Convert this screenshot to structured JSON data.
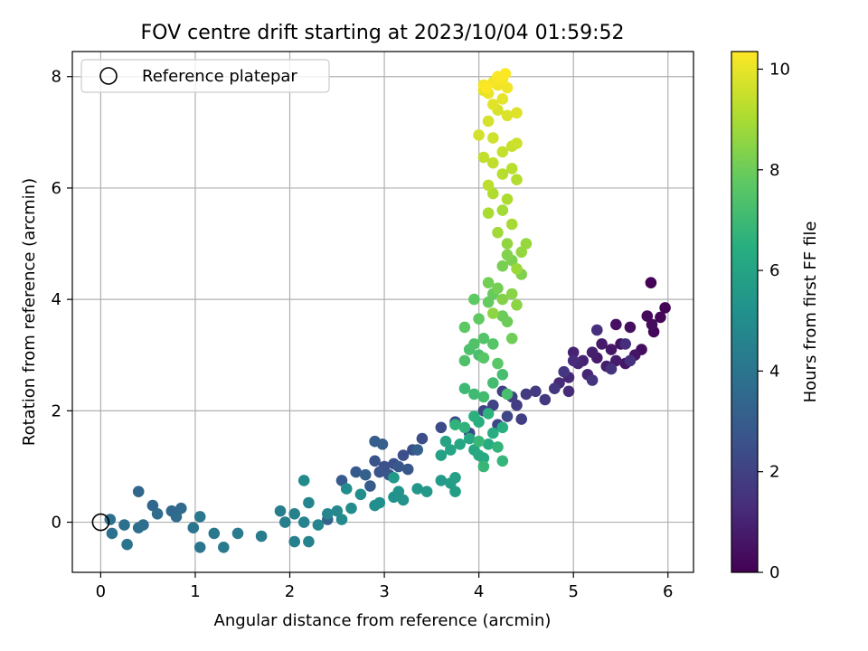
{
  "chart_data": {
    "type": "scatter",
    "title": "FOV centre drift starting at 2023/10/04 01:59:52",
    "xlabel": "Angular distance from reference (arcmin)",
    "ylabel": "Rotation from reference (arcmin)",
    "xlim": [
      -0.3,
      6.27
    ],
    "ylim": [
      -0.9,
      8.45
    ],
    "xticks": [
      0,
      1,
      2,
      3,
      4,
      5,
      6
    ],
    "yticks": [
      0,
      2,
      4,
      6,
      8
    ],
    "grid": true,
    "legend": {
      "placement": "top-left",
      "entries": [
        "Reference platepar"
      ]
    },
    "reference_point": {
      "x": 0,
      "y": 0
    },
    "colorbar": {
      "label": "Hours from first FF file",
      "min": 0,
      "max": 10.35,
      "ticks": [
        0,
        2,
        4,
        6,
        8,
        10
      ],
      "colormap": "viridis"
    },
    "columns": [
      "x",
      "y",
      "hours"
    ],
    "points": [
      [
        5.82,
        4.3,
        0.05
      ],
      [
        5.97,
        3.85,
        0.1
      ],
      [
        5.92,
        3.68,
        0.15
      ],
      [
        5.85,
        3.42,
        0.2
      ],
      [
        5.78,
        3.7,
        0.25
      ],
      [
        5.83,
        3.55,
        0.3
      ],
      [
        5.72,
        3.1,
        0.35
      ],
      [
        5.6,
        3.5,
        0.4
      ],
      [
        5.45,
        3.55,
        0.45
      ],
      [
        5.5,
        3.2,
        0.5
      ],
      [
        5.65,
        3.0,
        0.55
      ],
      [
        5.55,
        2.85,
        0.6
      ],
      [
        5.4,
        3.1,
        0.65
      ],
      [
        5.3,
        3.2,
        0.7
      ],
      [
        5.25,
        2.95,
        0.75
      ],
      [
        5.45,
        2.9,
        0.8
      ],
      [
        5.35,
        2.8,
        0.85
      ],
      [
        5.2,
        3.05,
        0.9
      ],
      [
        5.1,
        2.9,
        0.95
      ],
      [
        5.0,
        3.05,
        1.0
      ],
      [
        5.15,
        2.65,
        1.05
      ],
      [
        5.05,
        2.85,
        1.1
      ],
      [
        4.95,
        2.6,
        1.15
      ],
      [
        4.85,
        2.5,
        1.2
      ],
      [
        4.95,
        2.35,
        1.25
      ],
      [
        5.0,
        2.9,
        1.3
      ],
      [
        5.25,
        3.45,
        1.35
      ],
      [
        5.55,
        3.2,
        1.4
      ],
      [
        5.6,
        2.9,
        1.45
      ],
      [
        5.4,
        2.75,
        1.5
      ],
      [
        5.2,
        2.55,
        1.55
      ],
      [
        4.9,
        2.7,
        1.6
      ],
      [
        4.8,
        2.4,
        1.65
      ],
      [
        4.7,
        2.2,
        1.7
      ],
      [
        4.6,
        2.35,
        1.75
      ],
      [
        4.5,
        2.3,
        1.8
      ],
      [
        4.4,
        2.1,
        1.85
      ],
      [
        4.45,
        1.85,
        1.9
      ],
      [
        4.35,
        2.25,
        1.95
      ],
      [
        4.25,
        2.35,
        2.0
      ],
      [
        4.15,
        2.1,
        2.05
      ],
      [
        4.05,
        2.0,
        2.1
      ],
      [
        4.2,
        1.75,
        2.15
      ],
      [
        4.3,
        1.9,
        2.2
      ],
      [
        3.9,
        1.6,
        2.25
      ],
      [
        3.75,
        1.8,
        2.3
      ],
      [
        3.6,
        1.7,
        2.35
      ],
      [
        3.4,
        1.5,
        2.4
      ],
      [
        3.3,
        1.3,
        2.45
      ],
      [
        3.2,
        1.2,
        2.5
      ],
      [
        3.1,
        1.05,
        2.55
      ],
      [
        3.0,
        1.0,
        2.6
      ],
      [
        2.9,
        1.1,
        2.65
      ],
      [
        2.95,
        0.9,
        2.7
      ],
      [
        3.05,
        0.85,
        2.75
      ],
      [
        3.15,
        1.0,
        2.8
      ],
      [
        3.25,
        0.95,
        2.85
      ],
      [
        2.7,
        0.9,
        2.9
      ],
      [
        2.55,
        0.75,
        2.95
      ],
      [
        2.85,
        0.65,
        3.0
      ],
      [
        2.9,
        1.45,
        3.05
      ],
      [
        2.98,
        1.4,
        3.1
      ],
      [
        3.35,
        1.3,
        3.15
      ],
      [
        2.8,
        0.85,
        3.2
      ],
      [
        2.4,
        0.05,
        3.3
      ],
      [
        0.4,
        0.55,
        3.4
      ],
      [
        0.55,
        0.3,
        3.45
      ],
      [
        0.75,
        0.2,
        3.5
      ],
      [
        0.85,
        0.25,
        3.55
      ],
      [
        0.8,
        0.1,
        3.6
      ],
      [
        0.6,
        0.15,
        3.65
      ],
      [
        0.45,
        -0.05,
        3.7
      ],
      [
        0.4,
        -0.1,
        3.75
      ],
      [
        0.25,
        -0.05,
        3.8
      ],
      [
        0.1,
        0.05,
        3.85
      ],
      [
        0.12,
        -0.2,
        3.9
      ],
      [
        0.28,
        -0.4,
        3.95
      ],
      [
        0.98,
        -0.1,
        4.0
      ],
      [
        1.05,
        -0.45,
        4.05
      ],
      [
        1.05,
        0.1,
        4.1
      ],
      [
        1.2,
        -0.2,
        4.15
      ],
      [
        1.3,
        -0.45,
        4.2
      ],
      [
        1.45,
        -0.2,
        4.25
      ],
      [
        1.7,
        -0.25,
        4.3
      ],
      [
        1.9,
        0.2,
        4.35
      ],
      [
        1.95,
        0.0,
        4.4
      ],
      [
        2.05,
        -0.35,
        4.45
      ],
      [
        2.05,
        0.15,
        4.5
      ],
      [
        2.15,
        0.0,
        4.55
      ],
      [
        2.2,
        -0.35,
        4.6
      ],
      [
        2.2,
        0.35,
        4.65
      ],
      [
        2.3,
        -0.05,
        4.7
      ],
      [
        2.4,
        0.15,
        4.75
      ],
      [
        2.5,
        0.2,
        4.8
      ],
      [
        2.55,
        0.05,
        4.85
      ],
      [
        2.15,
        0.75,
        4.9
      ],
      [
        2.6,
        0.6,
        4.95
      ],
      [
        2.65,
        0.25,
        5.0
      ],
      [
        2.75,
        0.5,
        5.05
      ],
      [
        2.9,
        0.3,
        5.1
      ],
      [
        2.95,
        0.35,
        5.15
      ],
      [
        3.1,
        0.45,
        5.2
      ],
      [
        3.15,
        0.55,
        5.25
      ],
      [
        3.2,
        0.4,
        5.3
      ],
      [
        3.35,
        0.6,
        5.4
      ],
      [
        3.45,
        0.55,
        5.5
      ],
      [
        3.1,
        0.8,
        5.55
      ],
      [
        3.6,
        0.75,
        5.6
      ],
      [
        3.7,
        0.7,
        5.7
      ],
      [
        3.75,
        0.55,
        5.8
      ],
      [
        3.75,
        0.8,
        5.85
      ],
      [
        3.6,
        1.2,
        5.9
      ],
      [
        3.65,
        1.45,
        6.0
      ],
      [
        3.7,
        1.3,
        6.05
      ],
      [
        3.8,
        1.4,
        6.1
      ],
      [
        3.9,
        1.5,
        6.15
      ],
      [
        3.95,
        1.3,
        6.2
      ],
      [
        4.0,
        1.2,
        6.25
      ],
      [
        4.05,
        1.15,
        6.3
      ],
      [
        4.1,
        1.4,
        6.35
      ],
      [
        4.15,
        1.6,
        6.4
      ],
      [
        4.25,
        1.7,
        6.45
      ],
      [
        4.0,
        1.8,
        6.5
      ],
      [
        3.95,
        1.9,
        6.55
      ],
      [
        4.1,
        1.95,
        6.6
      ],
      [
        3.85,
        1.7,
        6.65
      ],
      [
        3.75,
        1.75,
        6.7
      ],
      [
        4.2,
        1.35,
        6.75
      ],
      [
        4.25,
        1.1,
        6.8
      ],
      [
        4.05,
        1.0,
        6.85
      ],
      [
        4.0,
        1.45,
        6.9
      ],
      [
        3.85,
        2.4,
        7.0
      ],
      [
        3.95,
        2.3,
        7.05
      ],
      [
        4.05,
        2.25,
        7.1
      ],
      [
        4.15,
        2.5,
        7.15
      ],
      [
        4.25,
        2.65,
        7.2
      ],
      [
        4.3,
        2.3,
        7.25
      ],
      [
        4.0,
        3.0,
        7.3
      ],
      [
        3.9,
        3.1,
        7.35
      ],
      [
        3.85,
        2.9,
        7.4
      ],
      [
        3.95,
        3.2,
        7.45
      ],
      [
        4.05,
        3.3,
        7.5
      ],
      [
        4.15,
        3.2,
        7.55
      ],
      [
        4.05,
        2.95,
        7.6
      ],
      [
        4.2,
        2.85,
        7.65
      ],
      [
        3.85,
        3.5,
        7.7
      ],
      [
        3.95,
        4.0,
        7.75
      ],
      [
        4.0,
        3.65,
        7.8
      ],
      [
        4.1,
        3.95,
        7.85
      ],
      [
        4.15,
        4.1,
        7.9
      ],
      [
        4.25,
        3.7,
        7.95
      ],
      [
        4.3,
        3.6,
        8.0
      ],
      [
        4.35,
        3.3,
        8.05
      ],
      [
        4.1,
        4.3,
        8.1
      ],
      [
        4.2,
        4.2,
        8.15
      ],
      [
        4.25,
        4.6,
        8.2
      ],
      [
        4.35,
        4.7,
        8.25
      ],
      [
        4.45,
        4.45,
        8.3
      ],
      [
        4.3,
        4.8,
        8.35
      ],
      [
        4.25,
        4.0,
        8.4
      ],
      [
        4.35,
        4.1,
        8.45
      ],
      [
        4.4,
        3.9,
        8.5
      ],
      [
        4.15,
        3.75,
        8.55
      ],
      [
        4.3,
        5.0,
        8.6
      ],
      [
        4.45,
        4.85,
        8.65
      ],
      [
        4.5,
        5.0,
        8.7
      ],
      [
        4.4,
        4.55,
        8.8
      ],
      [
        4.2,
        5.2,
        8.85
      ],
      [
        4.25,
        5.6,
        8.9
      ],
      [
        4.35,
        5.35,
        8.95
      ],
      [
        4.1,
        5.55,
        9.0
      ],
      [
        4.3,
        5.8,
        9.05
      ],
      [
        4.15,
        5.9,
        9.1
      ],
      [
        4.4,
        6.15,
        9.15
      ],
      [
        4.25,
        6.25,
        9.2
      ],
      [
        4.35,
        6.35,
        9.25
      ],
      [
        4.1,
        6.05,
        9.3
      ],
      [
        4.15,
        6.45,
        9.35
      ],
      [
        4.05,
        6.55,
        9.4
      ],
      [
        4.25,
        6.65,
        9.45
      ],
      [
        4.35,
        6.75,
        9.5
      ],
      [
        4.4,
        6.8,
        9.55
      ],
      [
        4.15,
        6.9,
        9.6
      ],
      [
        4.0,
        6.95,
        9.65
      ],
      [
        4.1,
        7.2,
        9.7
      ],
      [
        4.2,
        7.4,
        9.75
      ],
      [
        4.3,
        7.3,
        9.8
      ],
      [
        4.4,
        7.35,
        9.85
      ],
      [
        4.15,
        7.5,
        9.9
      ],
      [
        4.25,
        7.6,
        9.95
      ],
      [
        4.05,
        7.75,
        10.0
      ],
      [
        4.1,
        7.7,
        10.05
      ],
      [
        4.2,
        7.85,
        10.1
      ],
      [
        4.3,
        7.8,
        10.15
      ],
      [
        4.15,
        7.9,
        10.2
      ],
      [
        4.05,
        7.85,
        10.22
      ],
      [
        4.25,
        7.95,
        10.25
      ],
      [
        4.2,
        8.0,
        10.3
      ],
      [
        4.28,
        8.05,
        10.33
      ],
      [
        4.08,
        7.8,
        10.35
      ]
    ]
  }
}
